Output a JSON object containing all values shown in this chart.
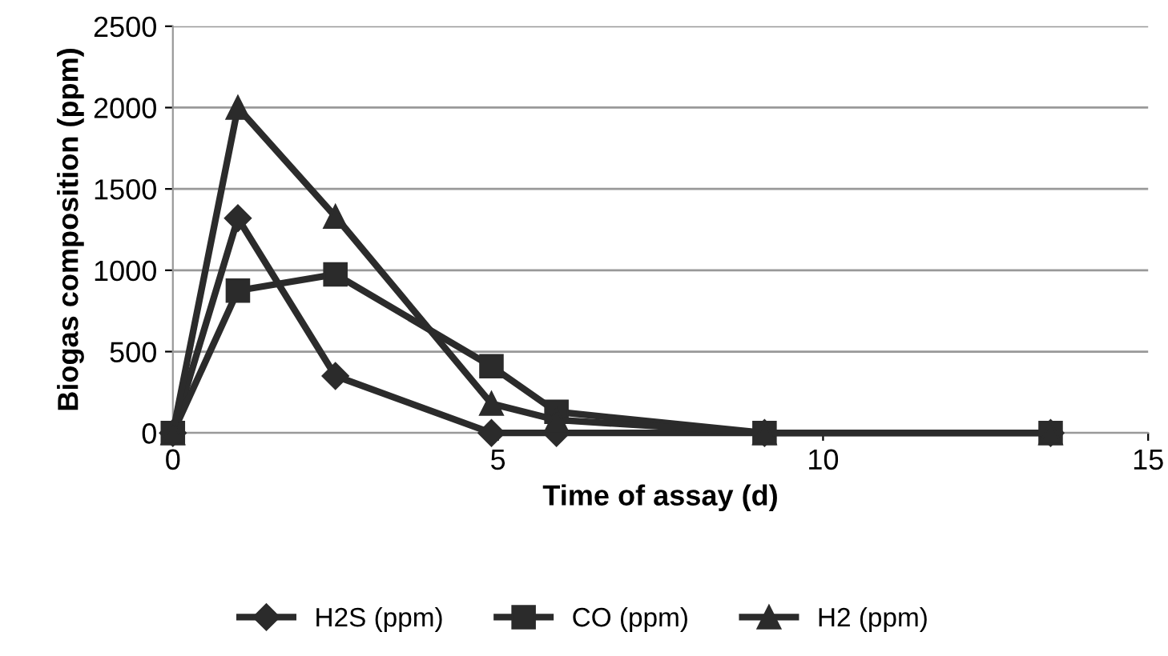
{
  "chart_data": {
    "type": "line",
    "xlabel": "Time of assay (d)",
    "ylabel": "Biogas composition (ppm)",
    "x": [
      0,
      1,
      2.5,
      4.9,
      5.9,
      9.1,
      13.5
    ],
    "series": [
      {
        "name": "H2S (ppm)",
        "color": "#2b2b2b",
        "marker": "diamond",
        "values": [
          0,
          1320,
          350,
          0,
          0,
          0,
          0
        ]
      },
      {
        "name": "CO (ppm)",
        "color": "#2b2b2b",
        "marker": "square",
        "values": [
          0,
          875,
          975,
          410,
          130,
          0,
          0
        ]
      },
      {
        "name": "H2 (ppm)",
        "color": "#2b2b2b",
        "marker": "triangle",
        "values": [
          0,
          2000,
          1330,
          180,
          80,
          0,
          0
        ]
      }
    ],
    "xlim": [
      0,
      15
    ],
    "xticks": [
      0,
      5,
      10,
      15
    ],
    "ylim": [
      0,
      2500
    ],
    "yticks": [
      0,
      500,
      1000,
      1500,
      2000,
      2500
    ],
    "grid": "y",
    "legend": "bottom"
  }
}
